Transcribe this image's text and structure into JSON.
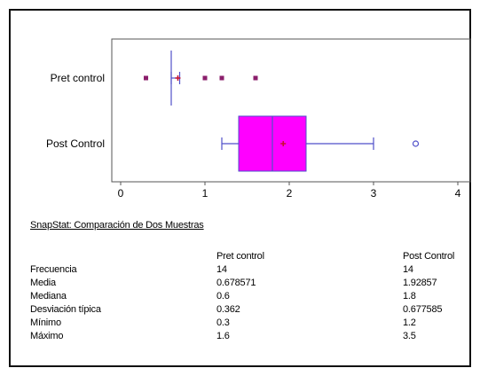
{
  "chart_data": {
    "type": "boxplot",
    "title": "",
    "xlabel": "",
    "ylabel": "",
    "xlim": [
      0,
      4
    ],
    "xticks": [
      "0",
      "1",
      "2",
      "3",
      "4"
    ],
    "grid": false,
    "legend": "none",
    "colors": {
      "box_fill": "#ff00ff",
      "line": "#4f4fc9",
      "mean": "#c8102e",
      "outlier": "#8b1e6b"
    },
    "series": [
      {
        "name": "Pret control",
        "min": 0.6,
        "q1": 0.6,
        "median": 0.6,
        "q3": 0.6,
        "max": 0.7,
        "mean": 0.678571,
        "outliers": [
          0.3,
          1.0,
          1.2,
          1.6
        ],
        "outlier_style": "filled-square"
      },
      {
        "name": "Post Control",
        "min": 1.2,
        "q1": 1.4,
        "median": 1.8,
        "q3": 2.2,
        "max": 3.0,
        "mean": 1.92857,
        "outliers": [
          3.5
        ],
        "outlier_style": "open-circle"
      }
    ]
  },
  "stats": {
    "title": "SnapStat: Comparación de Dos Muestras",
    "columns": [
      "Pret control",
      "Post Control"
    ],
    "rows": [
      {
        "label": "Frecuencia",
        "a": "14",
        "b": "14"
      },
      {
        "label": "Media",
        "a": "0.678571",
        "b": "1.92857"
      },
      {
        "label": "Mediana",
        "a": "0.6",
        "b": "1.8"
      },
      {
        "label": "Desviación típica",
        "a": "0.362",
        "b": "0.677585"
      },
      {
        "label": "Mínimo",
        "a": "0.3",
        "b": "1.2"
      },
      {
        "label": "Máximo",
        "a": "1.6",
        "b": "3.5"
      }
    ]
  }
}
